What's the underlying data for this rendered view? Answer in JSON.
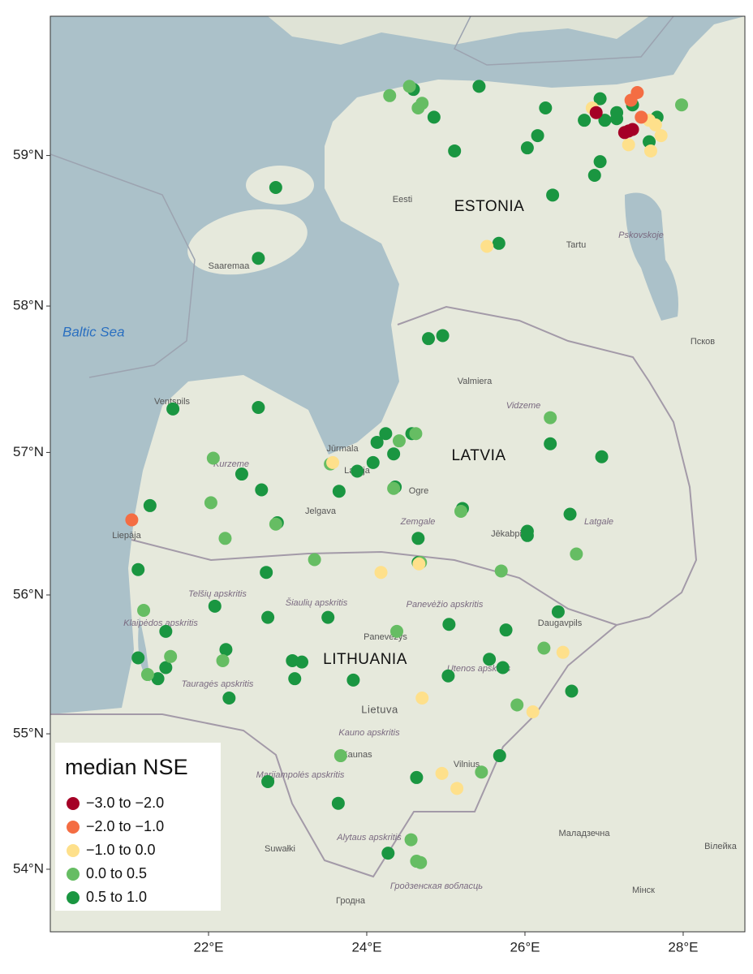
{
  "chart_data": {
    "type": "scatter",
    "projection": "mercator",
    "xlim": [
      20.0,
      28.78
    ],
    "ylim": [
      53.53,
      59.9
    ],
    "xticks": [
      {
        "value": 22,
        "label": "22°E"
      },
      {
        "value": 24,
        "label": "24°E"
      },
      {
        "value": 26,
        "label": "26°E"
      },
      {
        "value": 28,
        "label": "28°E"
      }
    ],
    "yticks": [
      {
        "value": 54,
        "label": "54°N"
      },
      {
        "value": 55,
        "label": "55°N"
      },
      {
        "value": 56,
        "label": "56°N"
      },
      {
        "value": 57,
        "label": "57°N"
      },
      {
        "value": 58,
        "label": "58°N"
      },
      {
        "value": 59,
        "label": "59°N"
      }
    ],
    "legend_title": "median NSE",
    "legend_position": "bottom-left",
    "series": [
      {
        "name": "−3.0 to −2.0",
        "color": "#a50026",
        "x": [
          26.9,
          27.31,
          27.36,
          27.26
        ],
        "y": [
          59.28,
          59.16,
          59.17,
          59.15
        ]
      },
      {
        "name": "−2.0 to −1.0",
        "color": "#f46d43",
        "x": [
          27.42,
          27.34,
          27.47,
          21.03
        ],
        "y": [
          59.41,
          59.36,
          59.25,
          56.53
        ]
      },
      {
        "name": "−1.0 to 0.0",
        "color": "#fee08b",
        "x": [
          26.85,
          27.57,
          27.65,
          27.72,
          27.59,
          27.31,
          25.52,
          23.57,
          24.66,
          24.18,
          26.48,
          24.7,
          26.1,
          24.95,
          25.14
        ],
        "y": [
          59.31,
          59.23,
          59.2,
          59.13,
          59.03,
          59.07,
          58.4,
          56.93,
          56.22,
          56.16,
          55.59,
          55.26,
          55.16,
          54.71,
          54.6
        ]
      },
      {
        "name": "0.0 to 0.5",
        "color": "#66bd63",
        "x": [
          24.29,
          24.54,
          24.65,
          24.7,
          27.98,
          23.54,
          22.06,
          22.03,
          22.21,
          22.85,
          24.41,
          24.62,
          24.34,
          25.19,
          26.32,
          26.65,
          25.7,
          24.68,
          21.18,
          23.34,
          24.38,
          26.24,
          21.23,
          21.52,
          22.18,
          25.9,
          23.67,
          25.45,
          24.56,
          24.63,
          24.68
        ],
        "y": [
          59.39,
          59.45,
          59.31,
          59.34,
          59.33,
          56.92,
          56.96,
          56.65,
          56.4,
          56.5,
          57.08,
          57.13,
          56.75,
          56.59,
          57.24,
          56.29,
          56.17,
          56.23,
          55.89,
          56.25,
          55.74,
          55.62,
          55.43,
          55.56,
          55.53,
          55.21,
          54.84,
          54.72,
          54.22,
          54.06,
          54.05
        ]
      },
      {
        "name": "0.5 to 1.0",
        "color": "#1a9641",
        "x": [
          24.59,
          24.85,
          25.42,
          25.11,
          26.26,
          26.16,
          26.03,
          26.35,
          22.85,
          22.63,
          25.67,
          27.01,
          26.95,
          27.16,
          27.67,
          27.57,
          27.36,
          26.95,
          26.88,
          27.16,
          26.75,
          24.78,
          24.96,
          21.55,
          22.63,
          22.42,
          22.67,
          21.26,
          22.87,
          23.65,
          23.88,
          24.08,
          24.13,
          24.24,
          24.57,
          24.36,
          24.34,
          25.21,
          26.32,
          26.97,
          26.57,
          26.03,
          26.03,
          24.65,
          24.65,
          21.11,
          21.46,
          22.73,
          22.08,
          22.75,
          23.51,
          25.04,
          25.76,
          26.42,
          21.11,
          21.36,
          21.46,
          22.22,
          23.06,
          23.18,
          23.09,
          23.83,
          25.03,
          25.55,
          25.72,
          26.59,
          22.26,
          22.75,
          23.64,
          24.63,
          25.68,
          24.27
        ],
        "y": [
          59.43,
          59.25,
          59.45,
          59.03,
          59.31,
          59.13,
          59.05,
          58.74,
          58.79,
          58.32,
          58.42,
          59.23,
          59.37,
          59.24,
          59.25,
          59.09,
          59.33,
          58.96,
          58.87,
          59.28,
          59.23,
          57.78,
          57.8,
          57.3,
          57.31,
          56.85,
          56.74,
          56.63,
          56.51,
          56.73,
          56.87,
          56.93,
          57.07,
          57.13,
          57.13,
          56.76,
          56.99,
          56.61,
          57.06,
          56.97,
          56.57,
          56.45,
          56.42,
          56.4,
          56.23,
          56.18,
          55.74,
          56.16,
          55.92,
          55.84,
          55.84,
          55.79,
          55.75,
          55.88,
          55.55,
          55.4,
          55.48,
          55.61,
          55.53,
          55.52,
          55.4,
          55.39,
          55.42,
          55.54,
          55.48,
          55.31,
          55.26,
          54.65,
          54.49,
          54.68,
          54.84,
          54.12
        ]
      }
    ]
  },
  "basemap": {
    "countries": [
      "ESTONIA",
      "LATVIA",
      "LITHUANIA"
    ],
    "sea": "Baltic Sea",
    "places": [
      "Eesti",
      "Tartu",
      "Saaremaa",
      "Valmiera",
      "Ventspils",
      "Jūrmala",
      "Latvija",
      "Ogre",
      "Jelgava",
      "Liepāja",
      "Jēkabpils",
      "Daugavpils",
      "Panevėžys",
      "Lietuva",
      "Kaunas",
      "Vilnius",
      "Suwałki",
      "Гродна",
      "Мінск",
      "Маладзечна",
      "Псков",
      "Вілейка"
    ],
    "regions": [
      "Vidzeme",
      "Kurzeme",
      "Zemgale",
      "Latgale",
      "Telšių apskritis",
      "Šiaulių apskritis",
      "Panevėžio apskritis",
      "Klaipėdos apskritis",
      "Tauragės apskritis",
      "Utenos apskritis",
      "Kauno apskritis",
      "Marijampolės apskritis",
      "Alytaus apskritis",
      "Гродзенская вобласць",
      "Pskovskoje"
    ]
  }
}
